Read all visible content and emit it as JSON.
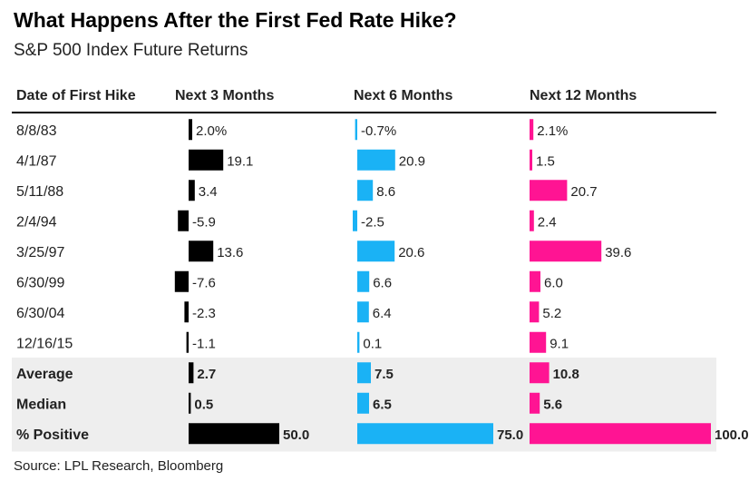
{
  "title": "What Happens After the First Fed Rate Hike?",
  "subtitle": "S&P 500 Index Future Returns",
  "source": "Source: LPL Research, Bloomberg",
  "chart_data": {
    "type": "table",
    "columns": [
      "Date of First Hike",
      "Next 3 Months",
      "Next 6 Months",
      "Next 12 Months"
    ],
    "rows": [
      {
        "label": "8/8/83",
        "values": [
          2.0,
          -0.7,
          2.1
        ],
        "display": [
          "2.0%",
          "-0.7%",
          "2.1%"
        ],
        "summary": false
      },
      {
        "label": "4/1/87",
        "values": [
          19.1,
          20.9,
          1.5
        ],
        "display": [
          "19.1",
          "20.9",
          "1.5"
        ],
        "summary": false
      },
      {
        "label": "5/11/88",
        "values": [
          3.4,
          8.6,
          20.7
        ],
        "display": [
          "3.4",
          "8.6",
          "20.7"
        ],
        "summary": false
      },
      {
        "label": "2/4/94",
        "values": [
          -5.9,
          -2.5,
          2.4
        ],
        "display": [
          "-5.9",
          "-2.5",
          "2.4"
        ],
        "summary": false
      },
      {
        "label": "3/25/97",
        "values": [
          13.6,
          20.6,
          39.6
        ],
        "display": [
          "13.6",
          "20.6",
          "39.6"
        ],
        "summary": false
      },
      {
        "label": "6/30/99",
        "values": [
          -7.6,
          6.6,
          6.0
        ],
        "display": [
          "-7.6",
          "6.6",
          "6.0"
        ],
        "summary": false
      },
      {
        "label": "6/30/04",
        "values": [
          -2.3,
          6.4,
          5.2
        ],
        "display": [
          "-2.3",
          "6.4",
          "5.2"
        ],
        "summary": false
      },
      {
        "label": "12/16/15",
        "values": [
          -1.1,
          0.1,
          9.1
        ],
        "display": [
          "-1.1",
          "0.1",
          "9.1"
        ],
        "summary": false
      },
      {
        "label": "Average",
        "values": [
          2.7,
          7.5,
          10.8
        ],
        "display": [
          "2.7",
          "7.5",
          "10.8"
        ],
        "summary": true
      },
      {
        "label": "Median",
        "values": [
          0.5,
          6.5,
          5.6
        ],
        "display": [
          "0.5",
          "6.5",
          "5.6"
        ],
        "summary": true
      },
      {
        "label": "% Positive",
        "values": [
          50.0,
          75.0,
          100.0
        ],
        "display": [
          "50.0",
          "75.0",
          "100.0"
        ],
        "summary": true
      }
    ],
    "colors": [
      "#000000",
      "#1ab2f5",
      "#ff1493"
    ],
    "summary_background": "#eeeeee"
  }
}
